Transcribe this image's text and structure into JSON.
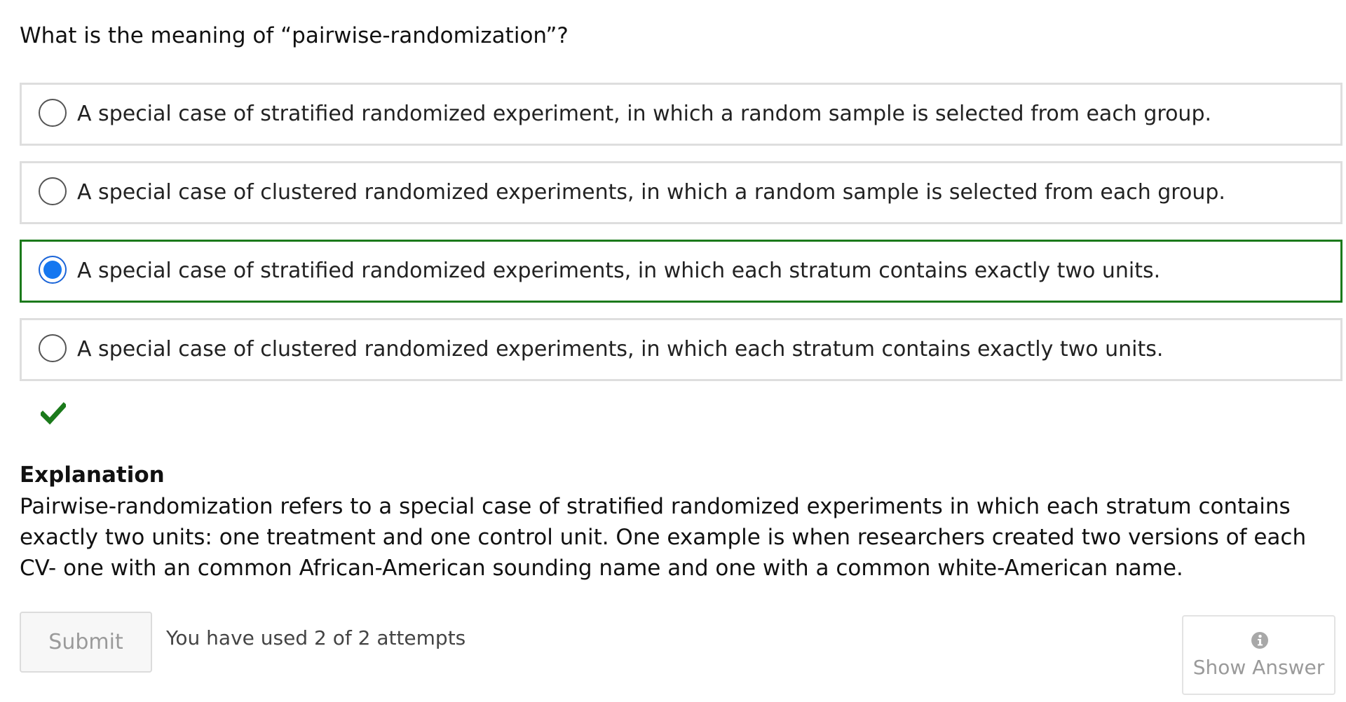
{
  "question": {
    "text": "What is the meaning of “pairwise-randomization”?"
  },
  "choices": [
    {
      "label": "A special case of stratified randomized experiment, in which a random sample is selected from each group.",
      "selected": false,
      "correct": false
    },
    {
      "label": "A special case of clustered randomized experiments, in which a random sample is selected from each group.",
      "selected": false,
      "correct": false
    },
    {
      "label": "A special case of stratified randomized experiments, in which each stratum contains exactly two units.",
      "selected": true,
      "correct": true
    },
    {
      "label": "A special case of clustered randomized experiments, in which each stratum contains exactly two units.",
      "selected": false,
      "correct": false
    }
  ],
  "status": {
    "icon": "checkmark-icon",
    "color": "#1b7a1b"
  },
  "explanation": {
    "title": "Explanation",
    "body": "Pairwise-randomization refers to a special case of stratified randomized experiments in which each stratum contains exactly two units: one treatment and one control unit. One example is when researchers created two versions of each CV- one with an common African-American sounding name and one with a common white-American name."
  },
  "actions": {
    "submit_label": "Submit",
    "attempts_text": "You have used 2 of 2 attempts",
    "show_answer_label": "Show Answer",
    "show_answer_icon": "info-icon"
  },
  "colors": {
    "correct_border": "#1b7a1b",
    "selected_radio": "#1577f0",
    "choice_border": "#dedede",
    "disabled_text": "#9a9a9a"
  }
}
